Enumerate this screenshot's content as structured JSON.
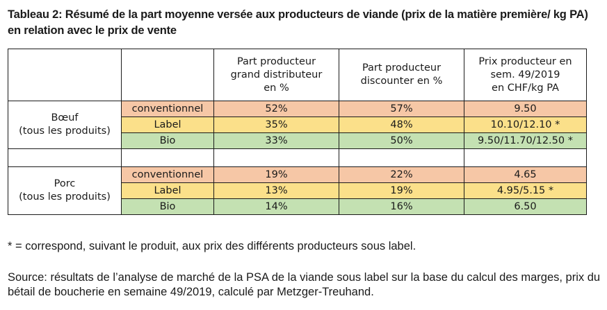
{
  "title": "Tableau 2: Résumé de la part moyenne versée aux producteurs de viande (prix de la matière première/ kg PA) en relation avec le prix de vente",
  "table": {
    "headers": [
      "",
      "",
      "Part producteur grand distributeur en %",
      "Part producteur discounter en %",
      "Prix producteur en sem. 49/2019 en CHF/kg PA"
    ],
    "header_lines": {
      "col2": [
        "Part producteur",
        "grand distributeur",
        "en %"
      ],
      "col3": [
        "Part producteur",
        "discounter en %"
      ],
      "col4": [
        "Prix producteur en",
        "sem. 49/2019",
        "en CHF/kg PA"
      ]
    },
    "groups": [
      {
        "name_lines": [
          "Bœuf",
          "(tous les produits)"
        ],
        "rows": [
          {
            "label": "conventionnel",
            "grand": "52%",
            "discounter": "57%",
            "prix": "9.50"
          },
          {
            "label": "Label",
            "grand": "35%",
            "discounter": "48%",
            "prix": "10.10/12.10 *"
          },
          {
            "label": "Bio",
            "grand": "33%",
            "discounter": "50%",
            "prix": "9.50/11.70/12.50 *"
          }
        ]
      },
      {
        "name_lines": [
          "Porc",
          "(tous les produits)"
        ],
        "rows": [
          {
            "label": "conventionnel",
            "grand": "19%",
            "discounter": "22%",
            "prix": "4.65"
          },
          {
            "label": "Label",
            "grand": "13%",
            "discounter": "19%",
            "prix": "4.95/5.15 *"
          },
          {
            "label": "Bio",
            "grand": "14%",
            "discounter": "16%",
            "prix": "6.50"
          }
        ]
      }
    ],
    "row_colors": {
      "conventionnel": "#f6c7a6",
      "Label": "#fbe08a",
      "Bio": "#c4e1b2"
    }
  },
  "footnote": "* = correspond, suivant le produit, aux prix des différents producteurs sous label.",
  "source": "Source: résultats de l’analyse de marché de la PSA de la viande sous label sur la base du calcul des marges, prix du bétail de boucherie en semaine 49/2019, calculé par Metzger-Treuhand."
}
